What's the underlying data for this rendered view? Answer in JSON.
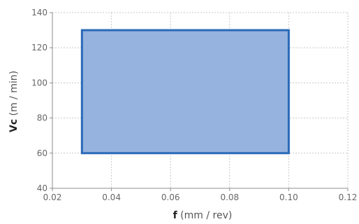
{
  "chart_data": {
    "type": "area",
    "title": "",
    "x_axis": {
      "symbol": "f",
      "unit": " (mm / rev)",
      "range": [
        0.02,
        0.12
      ],
      "ticks": [
        0.02,
        0.04,
        0.06,
        0.08,
        0.1,
        0.12
      ],
      "tick_labels": [
        "0.02",
        "0.04",
        "0.06",
        "0.08",
        "0.10",
        "0.12"
      ]
    },
    "y_axis": {
      "symbol": "Vc",
      "unit": " (m / min)",
      "range": [
        40,
        140
      ],
      "ticks": [
        40,
        60,
        80,
        100,
        120,
        140
      ],
      "tick_labels": [
        "40",
        "60",
        "80",
        "100",
        "120",
        "140"
      ]
    },
    "grid": true,
    "legend": "none",
    "region": {
      "x_min": 0.03,
      "x_max": 0.1,
      "y_min": 60,
      "y_max": 130,
      "fill_color": "#95b3de",
      "stroke_color": "#2a6ab8"
    }
  }
}
